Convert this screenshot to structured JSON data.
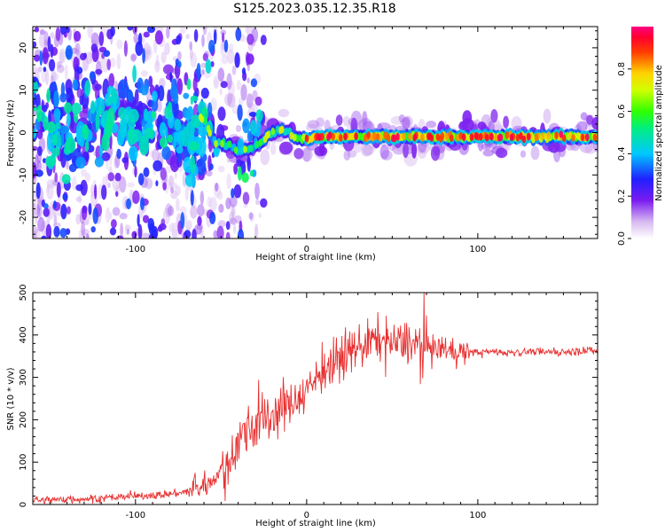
{
  "figure_title": "S125.2023.035.12.35.R18",
  "colorbar": {
    "label": "Normalized spectral amplitude",
    "ticks": [
      0.0,
      0.2,
      0.4,
      0.6,
      0.8
    ],
    "tick_labels": [
      "0.0",
      "0.2",
      "0.4",
      "0.6",
      "0.8"
    ],
    "range": [
      0,
      1
    ],
    "colormap": "rainbow (white-purple-blue-cyan-green-yellow-red-magenta)"
  },
  "chart_data": [
    {
      "type": "heatmap",
      "title": "",
      "xlabel": "Height of straight line (km)",
      "ylabel": "Frequency (Hz)",
      "xlim": [
        -160,
        170
      ],
      "ylim": [
        -25,
        25
      ],
      "x_ticks": [
        -100,
        0,
        100
      ],
      "x_tick_labels": [
        "-100",
        "0",
        "100"
      ],
      "y_ticks": [
        -20,
        -10,
        0,
        10,
        20
      ],
      "y_tick_labels": [
        "-20",
        "-10",
        "0",
        "10",
        "20"
      ],
      "grid": false,
      "ridge_frequency_hz": [
        [
          -60,
          3.5
        ],
        [
          -55,
          -2
        ],
        [
          -50,
          -2.5
        ],
        [
          -45,
          -3
        ],
        [
          -40,
          -4.5
        ],
        [
          -35,
          -4
        ],
        [
          -30,
          -3.5
        ],
        [
          -25,
          -1.5
        ],
        [
          -20,
          0
        ],
        [
          -15,
          0.5
        ],
        [
          -10,
          0
        ],
        [
          -5,
          -1.5
        ],
        [
          0,
          -1.5
        ],
        [
          5,
          -1
        ],
        [
          10,
          -1
        ],
        [
          20,
          -1
        ],
        [
          40,
          -1
        ],
        [
          60,
          -1
        ],
        [
          80,
          -1
        ],
        [
          100,
          -1
        ],
        [
          120,
          -1
        ],
        [
          140,
          -1
        ],
        [
          160,
          -1
        ],
        [
          170,
          -1
        ]
      ],
      "notes": "Strong narrow band near -1 Hz for heights above about 0 km; diffuse noise spread over the full frequency range for heights below about -50 km."
    },
    {
      "type": "line",
      "title": "",
      "xlabel": "Height of straight line (km)",
      "ylabel": "SNR (10 * v/v)",
      "xlim": [
        -160,
        170
      ],
      "ylim": [
        0,
        500
      ],
      "x_ticks": [
        -100,
        0,
        100
      ],
      "x_tick_labels": [
        "-100",
        "0",
        "100"
      ],
      "y_ticks": [
        0,
        100,
        200,
        300,
        400,
        500
      ],
      "y_tick_labels": [
        "0",
        "100",
        "200",
        "300",
        "400",
        "500"
      ],
      "color": "#e83030",
      "grid": false,
      "series": [
        {
          "name": "",
          "x": [
            -160,
            -140,
            -120,
            -100,
            -80,
            -70,
            -60,
            -50,
            -40,
            -30,
            -20,
            -10,
            0,
            10,
            20,
            30,
            40,
            50,
            60,
            70,
            80,
            90,
            100,
            120,
            140,
            170
          ],
          "y": [
            10,
            12,
            15,
            20,
            25,
            30,
            40,
            80,
            150,
            190,
            210,
            235,
            270,
            320,
            340,
            375,
            390,
            380,
            380,
            375,
            365,
            360,
            360,
            360,
            360,
            362
          ]
        }
      ]
    }
  ]
}
